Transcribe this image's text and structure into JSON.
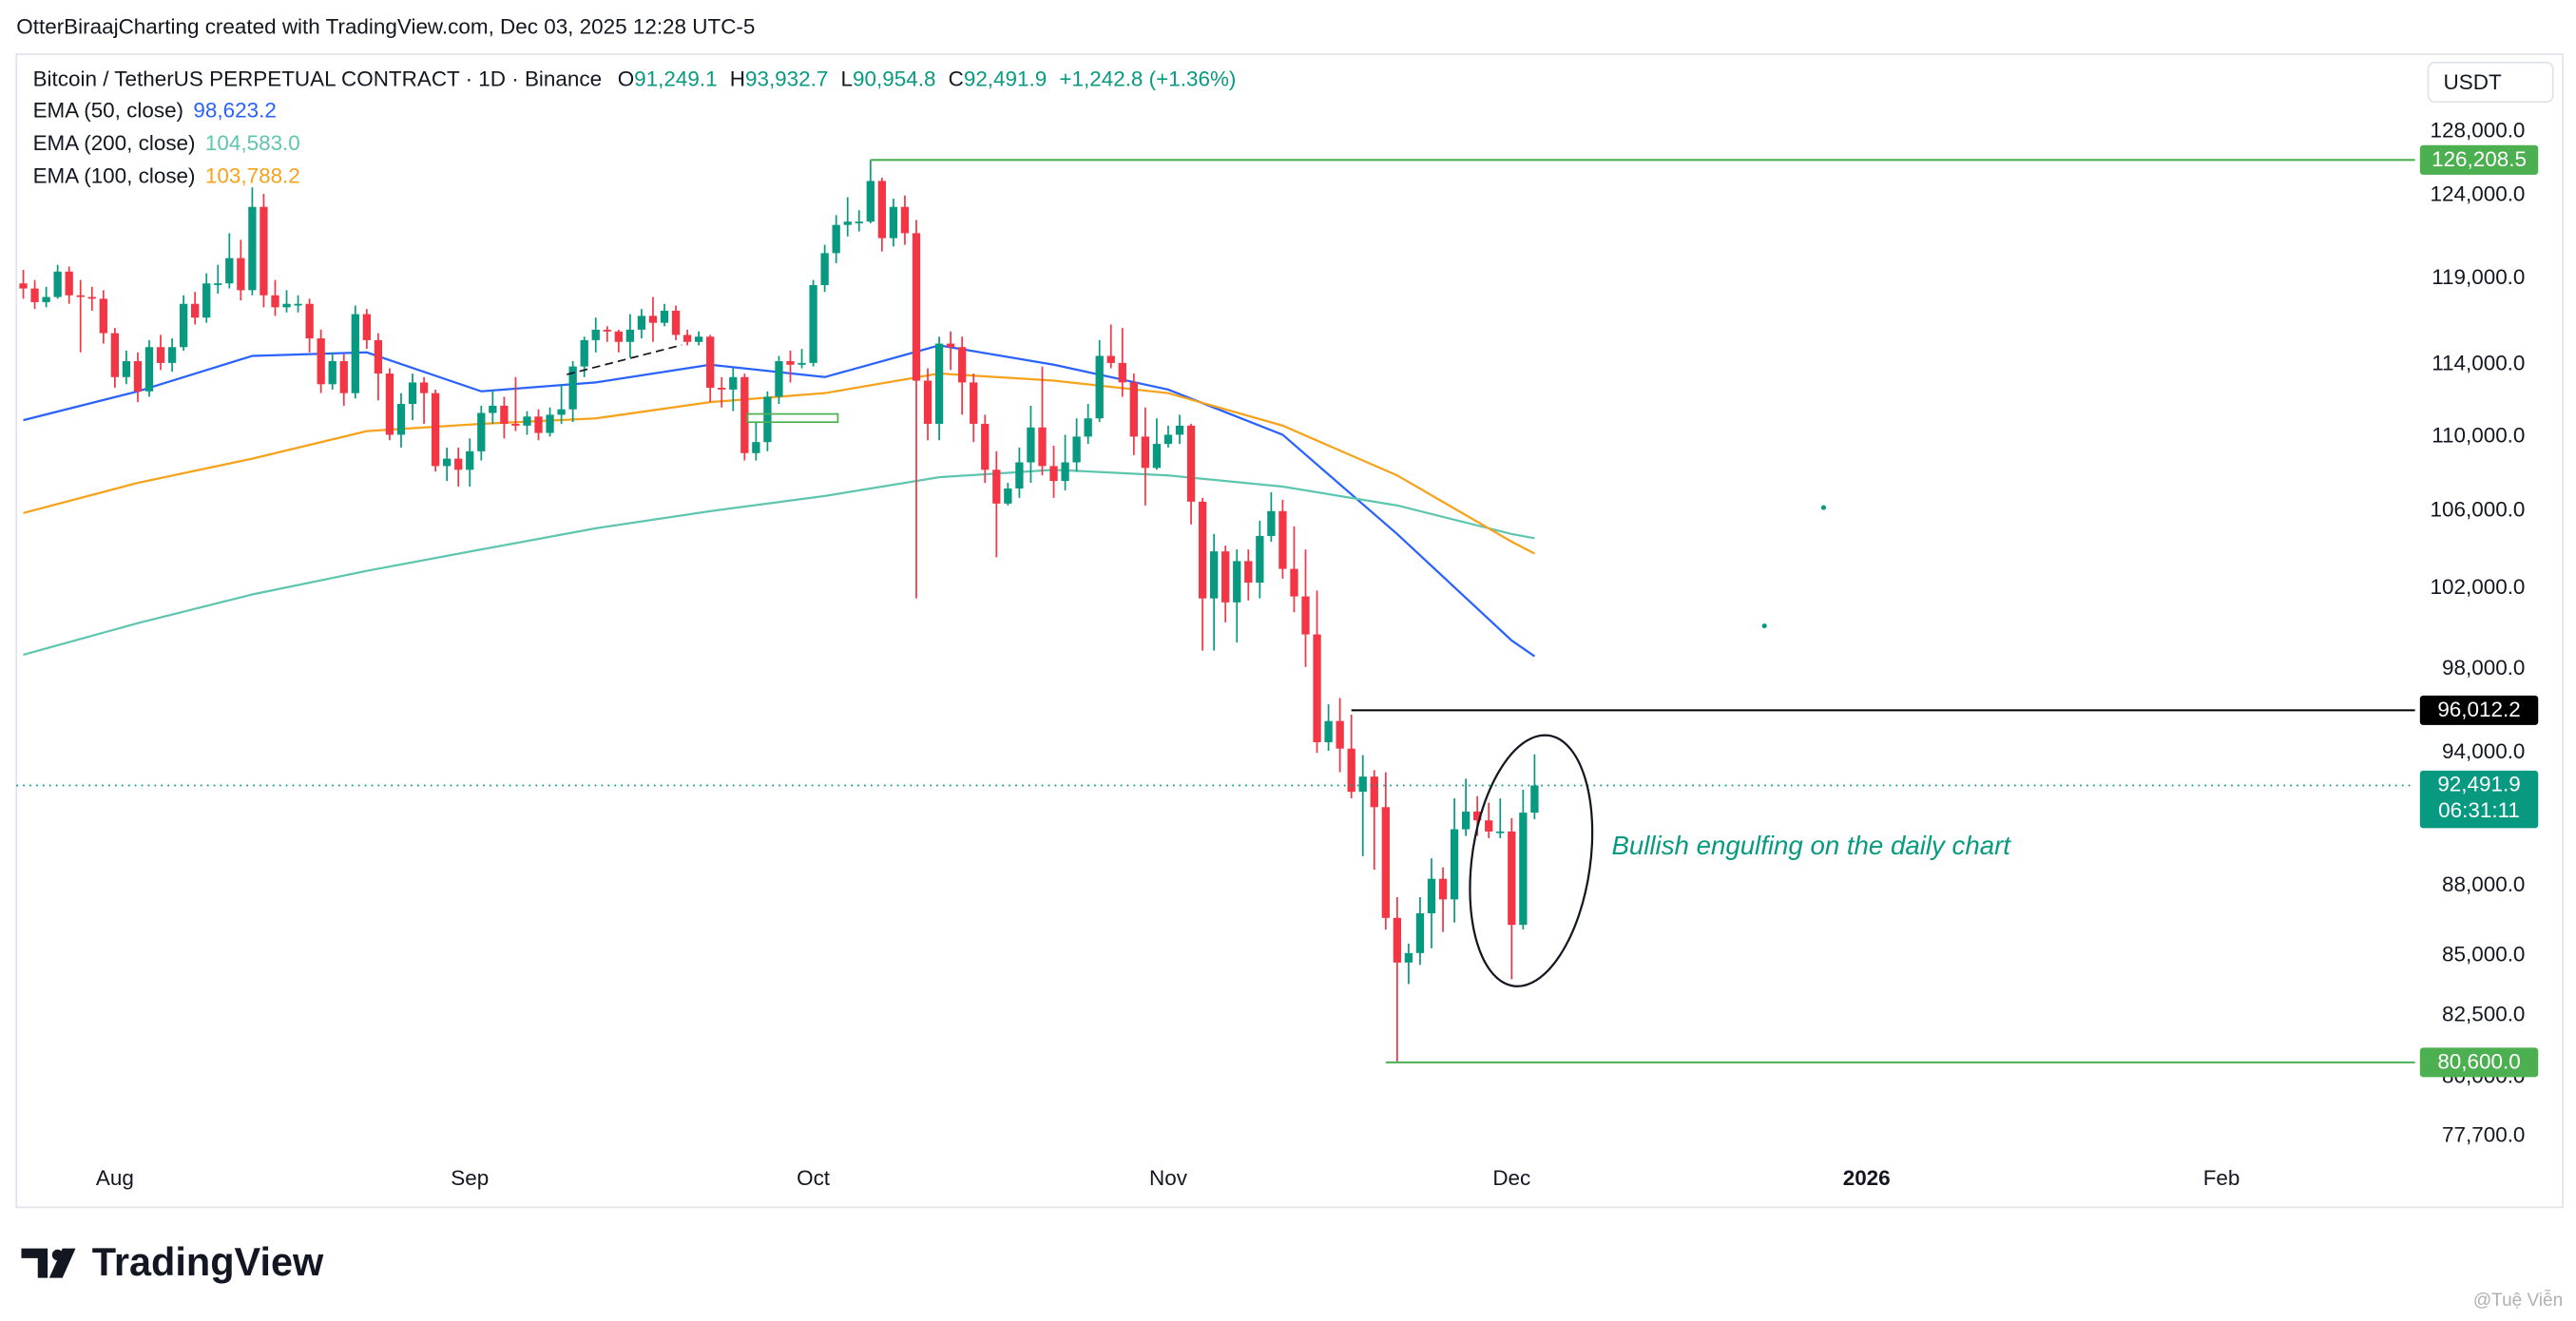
{
  "header": "OtterBiraajCharting created with TradingView.com, Dec 03, 2025 12:28 UTC-5",
  "legend": {
    "symbol": "Bitcoin / TetherUS PERPETUAL CONTRACT · 1D · Binance",
    "ohlc": [
      {
        "key": "O",
        "label": "91,249.1"
      },
      {
        "key": "H",
        "label": "93,932.7"
      },
      {
        "key": "L",
        "label": "90,954.8"
      },
      {
        "key": "C",
        "label": "92,491.9"
      }
    ],
    "change": "+1,242.8 (+1.36%)"
  },
  "currency": "USDT",
  "logo": "TradingView",
  "watermark": "@Tuệ Viễn",
  "chart_data": {
    "type": "candlestick",
    "log_scale": true,
    "grid": false,
    "up_color": "#089981",
    "down_color": "#f23645",
    "xlim": [
      -0.6,
      208.9
    ],
    "xticks": [
      {
        "value": 8,
        "label": "Aug"
      },
      {
        "value": 39,
        "label": "Sep"
      },
      {
        "value": 69,
        "label": "Oct"
      },
      {
        "value": 100,
        "label": "Nov"
      },
      {
        "value": 130,
        "label": "Dec"
      },
      {
        "value": 161,
        "label": "2026"
      },
      {
        "value": 192,
        "label": "Feb"
      }
    ],
    "ylim": [
      75000,
      132800
    ],
    "yticks": [
      {
        "value": 77700,
        "label": "77,700.0"
      },
      {
        "value": 80000,
        "label": "80,000.0"
      },
      {
        "value": 82500,
        "label": "82,500.0"
      },
      {
        "value": 85000,
        "label": "85,000.0"
      },
      {
        "value": 88000,
        "label": "88,000.0"
      },
      {
        "value": 94000,
        "label": "94,000.0"
      },
      {
        "value": 98000,
        "label": "98,000.0"
      },
      {
        "value": 102000,
        "label": "102,000.0"
      },
      {
        "value": 106000,
        "label": "106,000.0"
      },
      {
        "value": 110000,
        "label": "110,000.0"
      },
      {
        "value": 114000,
        "label": "114,000.0"
      },
      {
        "value": 119000,
        "label": "119,000.0"
      },
      {
        "value": 124000,
        "label": "124,000.0"
      },
      {
        "value": 128000,
        "label": "128,000.0"
      }
    ],
    "open": [
      118700,
      118400,
      117600,
      117900,
      119400,
      118000,
      117900,
      117800,
      115800,
      113300,
      114200,
      112500,
      115000,
      114100,
      115000,
      117500,
      116700,
      118700,
      118700,
      120200,
      118300,
      123300,
      118000,
      117300,
      117500,
      117500,
      115500,
      112900,
      114200,
      112400,
      116900,
      115400,
      113500,
      110100,
      111800,
      113000,
      112400,
      108400,
      108800,
      108200,
      109200,
      111300,
      111700,
      110700,
      110600,
      111100,
      110200,
      111200,
      111500,
      113900,
      115400,
      116000,
      115900,
      115300,
      116000,
      116800,
      116400,
      117100,
      115700,
      115300,
      115600,
      112700,
      112600,
      113300,
      109100,
      109700,
      112200,
      114200,
      114000,
      114100,
      118600,
      120500,
      122200,
      122400,
      122400,
      124900,
      121400,
      123300,
      121700,
      113100,
      110700,
      115200,
      115000,
      113000,
      110700,
      108200,
      106400,
      107200,
      108600,
      110500,
      108400,
      107600,
      108600,
      110000,
      111000,
      114500,
      114100,
      113000,
      110000,
      108300,
      109600,
      110100,
      110600,
      106500,
      101500,
      103900,
      101300,
      103400,
      102300,
      104700,
      106000,
      103000,
      101600,
      99700,
      94500,
      95500,
      94200,
      92200,
      92900,
      91500,
      86600,
      84700,
      85100,
      86800,
      88300,
      87400,
      90500,
      91300,
      90900,
      90400,
      90400,
      86300,
      91249.1
    ],
    "high": [
      119500,
      118900,
      118500,
      119800,
      119700,
      118900,
      118500,
      118300,
      116100,
      114800,
      114700,
      115400,
      115700,
      115500,
      118000,
      118200,
      119300,
      119800,
      121700,
      121300,
      124500,
      124100,
      118900,
      118300,
      118000,
      117800,
      116000,
      114700,
      114600,
      117400,
      117200,
      115800,
      113800,
      112400,
      113500,
      113300,
      112600,
      109400,
      109400,
      109900,
      111700,
      112600,
      112200,
      113300,
      111400,
      111500,
      111600,
      112900,
      114200,
      115600,
      116700,
      116200,
      116000,
      116900,
      117200,
      117900,
      117500,
      117400,
      116000,
      115900,
      115700,
      113300,
      113800,
      113500,
      110800,
      112500,
      114500,
      114800,
      114900,
      118900,
      121000,
      122800,
      123900,
      123100,
      126208.5,
      125100,
      123800,
      124000,
      122500,
      113800,
      115600,
      115900,
      115600,
      113500,
      111200,
      109200,
      107500,
      109400,
      111700,
      113900,
      109500,
      110100,
      111000,
      111800,
      115400,
      116300,
      116100,
      113500,
      111600,
      111000,
      110600,
      111200,
      110700,
      106700,
      104800,
      104200,
      104000,
      104000,
      105500,
      107000,
      106600,
      105200,
      104000,
      101900,
      96300,
      96600,
      95800,
      93900,
      93200,
      93100,
      87500,
      85500,
      87500,
      89200,
      88800,
      91900,
      92800,
      92000,
      91700,
      91900,
      91000,
      92300,
      93932.7
    ],
    "low": [
      117800,
      117200,
      117300,
      117800,
      117500,
      114700,
      117100,
      115200,
      112700,
      112900,
      111900,
      112200,
      113700,
      113600,
      114800,
      116300,
      116400,
      118100,
      118400,
      117700,
      118000,
      117300,
      116800,
      117000,
      117000,
      114700,
      112400,
      112600,
      111700,
      112100,
      114900,
      112000,
      109800,
      109400,
      110900,
      110700,
      108100,
      107600,
      107300,
      107300,
      108700,
      110700,
      109900,
      110300,
      110100,
      109800,
      110000,
      110700,
      110800,
      113300,
      114700,
      115300,
      114700,
      114400,
      115500,
      115300,
      116200,
      115400,
      115100,
      115100,
      111900,
      111600,
      111400,
      108700,
      108700,
      109200,
      111800,
      113000,
      113800,
      113900,
      118200,
      119900,
      121500,
      121800,
      122300,
      120600,
      120900,
      121000,
      101500,
      109800,
      109800,
      113700,
      111200,
      109700,
      107500,
      103600,
      106300,
      106700,
      107500,
      107900,
      106700,
      107100,
      108100,
      109600,
      110800,
      113800,
      112200,
      109000,
      106300,
      108200,
      109400,
      109600,
      105300,
      98900,
      98900,
      100300,
      99300,
      101400,
      101500,
      104400,
      102500,
      100800,
      98100,
      94000,
      94100,
      93100,
      91900,
      89300,
      88700,
      86100,
      80600,
      83800,
      84600,
      85300,
      86000,
      86400,
      90200,
      90200,
      90100,
      90100,
      84000,
      86100,
      90954.8
    ],
    "close": [
      118400,
      117600,
      117900,
      119400,
      118000,
      117900,
      117800,
      115800,
      113300,
      114200,
      112500,
      115000,
      114100,
      115000,
      117500,
      116700,
      118700,
      118700,
      120200,
      118300,
      123300,
      118000,
      117300,
      117500,
      117500,
      115500,
      112900,
      114200,
      112400,
      116900,
      115400,
      113500,
      110100,
      111800,
      113000,
      112400,
      108400,
      108800,
      108200,
      109200,
      111300,
      111700,
      110700,
      110600,
      111100,
      110200,
      111200,
      111500,
      113900,
      115400,
      116000,
      115900,
      115300,
      116000,
      116800,
      116400,
      117100,
      115700,
      115300,
      115600,
      112700,
      112600,
      113300,
      109100,
      109700,
      112200,
      114200,
      114000,
      114100,
      118600,
      120500,
      122200,
      122400,
      122400,
      124900,
      121400,
      123300,
      121700,
      113100,
      110700,
      115200,
      115000,
      113000,
      110700,
      108200,
      106400,
      107200,
      108600,
      110500,
      108400,
      107600,
      108600,
      110000,
      111000,
      114500,
      114100,
      113000,
      110000,
      108300,
      109600,
      110100,
      110600,
      106500,
      101500,
      103900,
      101300,
      103400,
      102300,
      104700,
      106000,
      103000,
      101600,
      99700,
      94500,
      95500,
      94200,
      92200,
      92900,
      91500,
      86600,
      84700,
      85100,
      86800,
      88300,
      87400,
      90500,
      91300,
      90900,
      90400,
      90400,
      86300,
      91249.1,
      92491.9
    ],
    "series": [
      {
        "name": "EMA (50, close)",
        "color": "#2962ff",
        "last_label": "98,623.2",
        "x": [
          0,
          10,
          20,
          30,
          40,
          50,
          60,
          70,
          80,
          90,
          100,
          110,
          120,
          130,
          132
        ],
        "values": [
          110900,
          112500,
          114500,
          114700,
          112500,
          113000,
          114000,
          113300,
          115100,
          114000,
          112600,
          110100,
          104800,
          99400,
          98623.2
        ]
      },
      {
        "name": "EMA (200, close)",
        "color": "#5ec5b0",
        "last_label": "104,583.0",
        "x": [
          0,
          10,
          20,
          30,
          40,
          50,
          60,
          70,
          80,
          90,
          100,
          110,
          120,
          130,
          132
        ],
        "values": [
          98700,
          100260,
          101700,
          102900,
          104000,
          105100,
          106000,
          106800,
          107800,
          108200,
          107900,
          107300,
          106300,
          104800,
          104583.0
        ]
      },
      {
        "name": "EMA (100, close)",
        "color": "#f7a21b",
        "last_label": "103,788.2",
        "x": [
          0,
          10,
          20,
          30,
          40,
          50,
          60,
          70,
          80,
          90,
          100,
          110,
          120,
          130,
          132
        ],
        "values": [
          105900,
          107500,
          108800,
          110300,
          110700,
          111000,
          111900,
          112400,
          113500,
          113100,
          112400,
          110600,
          107900,
          104400,
          103788.2
        ]
      }
    ],
    "levels": [
      {
        "value": 126208.5,
        "label": "126,208.5",
        "from": 74,
        "color": "#4caf50"
      },
      {
        "value": 96012.2,
        "label": "96,012.2",
        "from": 116,
        "color": "#000000"
      },
      {
        "value": 80600.0,
        "label": "80,600.0",
        "from": 119,
        "color": "#4caf50"
      }
    ],
    "last_price": {
      "value": 92491.9,
      "label": "92,491.9",
      "countdown": "06:31:11",
      "color": "#089981"
    },
    "annotation": "Bullish engulfing on the daily chart"
  }
}
